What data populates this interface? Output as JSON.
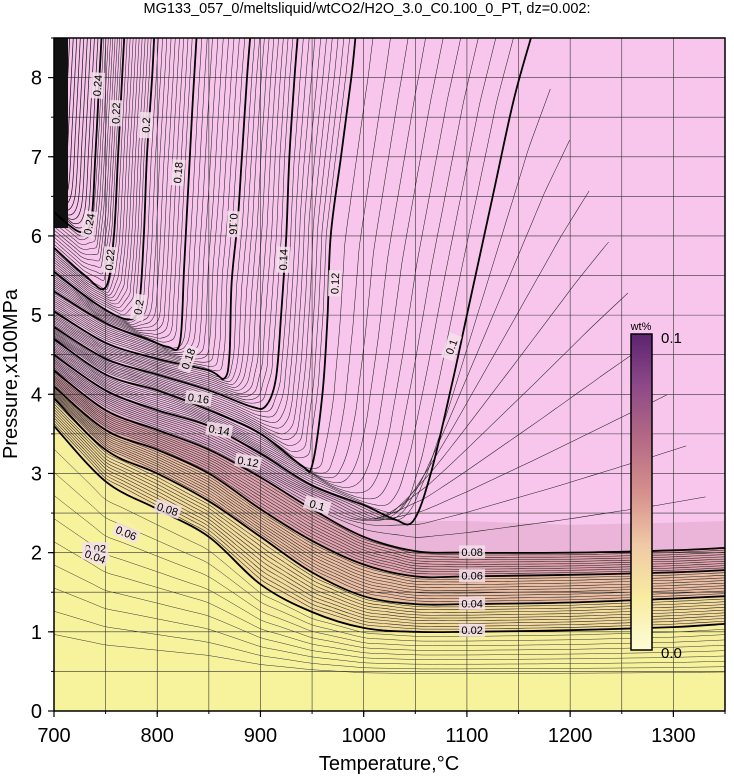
{
  "title": "MG133_057_0/meltsliquid/wtCO2/H2O_3.0_C0.100_0_PT, dz=0.002:",
  "chart_data": {
    "type": "contour",
    "xlabel": "Temperature,°C",
    "ylabel": "Pressure,x100MPa",
    "xlim": [
      700,
      1350
    ],
    "ylim": [
      0,
      8.5
    ],
    "xticks": [
      700,
      800,
      900,
      1000,
      1100,
      1200,
      1300
    ],
    "yticks": [
      0,
      1,
      2,
      3,
      4,
      5,
      6,
      7,
      8
    ],
    "xgrid": [
      700,
      750,
      800,
      850,
      900,
      950,
      1000,
      1050,
      1100,
      1150,
      1200,
      1250,
      1300,
      1350
    ],
    "ygrid": [
      0,
      0.5,
      1,
      1.5,
      2,
      2.5,
      3,
      3.5,
      4,
      4.5,
      5,
      5.5,
      6,
      6.5,
      7,
      7.5,
      8,
      8.5
    ],
    "grid": true,
    "colorbar": {
      "unit": "wt%",
      "min_label": "0.0",
      "max_label": "0.1",
      "colors": [
        "#fdfcd6",
        "#f8eca0",
        "#f0c8a6",
        "#d58f8c",
        "#b46a84",
        "#8e4a88",
        "#5b2470"
      ],
      "placement": "right"
    },
    "fill_colors": {
      "low": "#f6ef9c",
      "high": "#f8c6ec"
    },
    "contour_interval": 0.002,
    "labeled_contours": [
      {
        "label": "0.02",
        "points": [
          [
            700,
            3.6
          ],
          [
            750,
            2.9
          ],
          [
            800,
            2.55
          ],
          [
            850,
            2.2
          ],
          [
            900,
            1.6
          ],
          [
            950,
            1.25
          ],
          [
            1000,
            1.05
          ],
          [
            1050,
            1.0
          ],
          [
            1100,
            1.0
          ],
          [
            1200,
            1.02
          ],
          [
            1300,
            1.06
          ],
          [
            1350,
            1.1
          ]
        ]
      },
      {
        "label": "0.04",
        "points": [
          [
            700,
            3.95
          ],
          [
            750,
            3.3
          ],
          [
            800,
            3.0
          ],
          [
            850,
            2.65
          ],
          [
            900,
            2.2
          ],
          [
            950,
            1.75
          ],
          [
            1000,
            1.45
          ],
          [
            1050,
            1.35
          ],
          [
            1100,
            1.35
          ],
          [
            1200,
            1.37
          ],
          [
            1300,
            1.42
          ],
          [
            1350,
            1.45
          ]
        ]
      },
      {
        "label": "0.06",
        "points": [
          [
            700,
            4.1
          ],
          [
            750,
            3.55
          ],
          [
            800,
            3.3
          ],
          [
            850,
            3.0
          ],
          [
            900,
            2.55
          ],
          [
            950,
            2.15
          ],
          [
            1000,
            1.85
          ],
          [
            1050,
            1.7
          ],
          [
            1100,
            1.7
          ],
          [
            1200,
            1.72
          ],
          [
            1300,
            1.75
          ],
          [
            1350,
            1.78
          ]
        ]
      },
      {
        "label": "0.08",
        "points": [
          [
            700,
            4.3
          ],
          [
            750,
            3.8
          ],
          [
            800,
            3.55
          ],
          [
            850,
            3.3
          ],
          [
            900,
            2.95
          ],
          [
            950,
            2.55
          ],
          [
            1000,
            2.2
          ],
          [
            1050,
            2.02
          ],
          [
            1100,
            2.0
          ],
          [
            1200,
            2.0
          ],
          [
            1300,
            2.03
          ],
          [
            1350,
            2.06
          ]
        ]
      },
      {
        "label": "0.1",
        "points": [
          [
            700,
            4.5
          ],
          [
            750,
            4.05
          ],
          [
            800,
            3.8
          ],
          [
            850,
            3.6
          ],
          [
            900,
            3.25
          ],
          [
            950,
            2.85
          ],
          [
            1000,
            2.6
          ],
          [
            1030,
            2.42
          ],
          [
            1048,
            2.4
          ],
          [
            1065,
            3.0
          ],
          [
            1085,
            4.1
          ],
          [
            1100,
            5.0
          ],
          [
            1125,
            6.5
          ],
          [
            1145,
            7.7
          ],
          [
            1162,
            8.5
          ]
        ]
      },
      {
        "label": "0.12",
        "points": [
          [
            700,
            4.7
          ],
          [
            750,
            4.25
          ],
          [
            800,
            4.05
          ],
          [
            850,
            3.8
          ],
          [
            900,
            3.5
          ],
          [
            940,
            3.1
          ],
          [
            950,
            3.1
          ],
          [
            960,
            4.0
          ],
          [
            965,
            5.0
          ],
          [
            968,
            6.0
          ],
          [
            978,
            7.0
          ],
          [
            988,
            8.0
          ],
          [
            992,
            8.5
          ]
        ]
      },
      {
        "label": "0.14",
        "points": [
          [
            700,
            4.85
          ],
          [
            750,
            4.45
          ],
          [
            800,
            4.25
          ],
          [
            850,
            4.05
          ],
          [
            890,
            3.85
          ],
          [
            905,
            3.85
          ],
          [
            915,
            4.2
          ],
          [
            920,
            5.0
          ],
          [
            925,
            6.0
          ],
          [
            928,
            7.0
          ],
          [
            933,
            8.0
          ],
          [
            936,
            8.5
          ]
        ]
      },
      {
        "label": "0.16",
        "points": [
          [
            700,
            5.05
          ],
          [
            750,
            4.65
          ],
          [
            800,
            4.45
          ],
          [
            850,
            4.3
          ],
          [
            865,
            4.2
          ],
          [
            870,
            4.5
          ],
          [
            872,
            5.4
          ],
          [
            878,
            6.2
          ],
          [
            882,
            7.0
          ],
          [
            887,
            8.0
          ],
          [
            890,
            8.5
          ]
        ]
      },
      {
        "label": "0.18",
        "points": [
          [
            700,
            5.3
          ],
          [
            750,
            4.9
          ],
          [
            790,
            4.7
          ],
          [
            810,
            4.6
          ],
          [
            822,
            4.65
          ],
          [
            826,
            5.6
          ],
          [
            830,
            6.6
          ],
          [
            834,
            7.6
          ],
          [
            838,
            8.5
          ]
        ]
      },
      {
        "label": "0.2",
        "points": [
          [
            700,
            5.55
          ],
          [
            740,
            5.15
          ],
          [
            770,
            4.95
          ],
          [
            782,
            5.1
          ],
          [
            787,
            6.0
          ],
          [
            790,
            7.0
          ],
          [
            795,
            8.0
          ],
          [
            797,
            8.5
          ]
        ]
      },
      {
        "label": "0.22",
        "points": [
          [
            700,
            5.85
          ],
          [
            730,
            5.5
          ],
          [
            750,
            5.35
          ],
          [
            758,
            6.0
          ],
          [
            762,
            7.0
          ],
          [
            766,
            8.0
          ],
          [
            768,
            8.5
          ]
        ]
      },
      {
        "label": "0.24",
        "points": [
          [
            700,
            6.3
          ],
          [
            725,
            6.05
          ],
          [
            736,
            6.2
          ],
          [
            740,
            7.0
          ],
          [
            744,
            8.0
          ],
          [
            746,
            8.5
          ]
        ]
      }
    ]
  }
}
